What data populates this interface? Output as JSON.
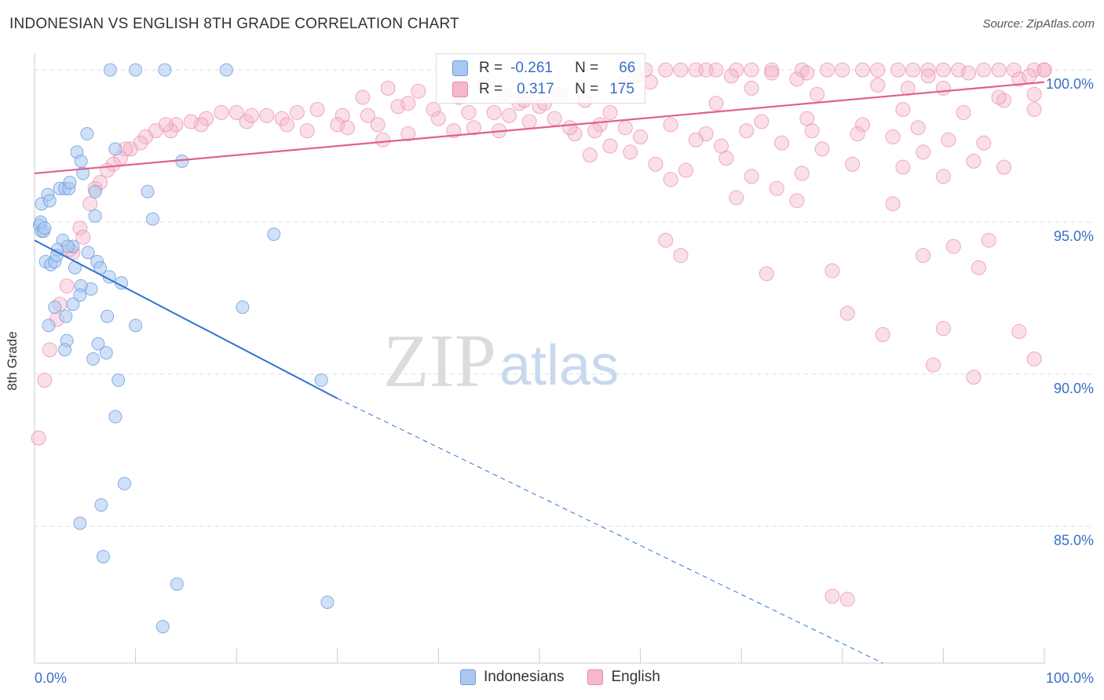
{
  "header": {
    "title": "INDONESIAN VS ENGLISH 8TH GRADE CORRELATION CHART",
    "source": "Source: ZipAtlas.com"
  },
  "watermark": {
    "zip": "ZIP",
    "atlas": "atlas"
  },
  "legend": {
    "rows": [
      {
        "r_label": "R =",
        "r_value": "-0.261",
        "n_label": "N =",
        "n_value": "66"
      },
      {
        "r_label": "R =",
        "r_value": "0.317",
        "n_label": "N =",
        "n_value": "175"
      }
    ]
  },
  "bottom_legend": {
    "items": [
      "Indonesians",
      "English"
    ]
  },
  "colors": {
    "indonesians_fill": "#a9c8f0",
    "indonesians_stroke": "#6b9be0",
    "indonesians_line": "#2f72d1",
    "english_fill": "#f5b8cb",
    "english_stroke": "#e98aa8",
    "english_line": "#e0608a",
    "tick_text": "#3a6fc4",
    "grid": "#dddddd"
  },
  "chart_data": {
    "type": "scatter",
    "title": "INDONESIAN VS ENGLISH 8TH GRADE CORRELATION CHART",
    "xlabel": "",
    "ylabel": "8th Grade",
    "xlim": [
      0,
      100
    ],
    "ylim": [
      80.5,
      100.7
    ],
    "x_tick_labels": [
      "0.0%",
      "100.0%"
    ],
    "y_ticks": [
      100,
      95,
      90,
      85
    ],
    "y_tick_labels": [
      "100.0%",
      "95.0%",
      "90.0%",
      "85.0%"
    ],
    "grid": true,
    "legend_position": "top-center",
    "series": [
      {
        "name": "Indonesians",
        "trend": {
          "x_start": 0,
          "y_start": 94.4,
          "x_solid_end": 30,
          "y_solid_end": 89.2,
          "x_dash_end": 84,
          "y_dash_end": 80.5
        },
        "points": [
          [
            7.5,
            100
          ],
          [
            10,
            100
          ],
          [
            12.9,
            100
          ],
          [
            19,
            100
          ],
          [
            5.2,
            97.9
          ],
          [
            4.2,
            97.3
          ],
          [
            8,
            97.4
          ],
          [
            14.6,
            97
          ],
          [
            4.6,
            97
          ],
          [
            4.8,
            96.6
          ],
          [
            2.5,
            96.1
          ],
          [
            3,
            96.1
          ],
          [
            3.4,
            96.1
          ],
          [
            6,
            96
          ],
          [
            11.2,
            96
          ],
          [
            1.3,
            95.9
          ],
          [
            0.7,
            95.6
          ],
          [
            1.5,
            95.7
          ],
          [
            3.5,
            96.3
          ],
          [
            6,
            95.2
          ],
          [
            11.7,
            95.1
          ],
          [
            0.5,
            94.9
          ],
          [
            0.7,
            94.7
          ],
          [
            0.9,
            94.7
          ],
          [
            23.7,
            94.6
          ],
          [
            2.8,
            94.4
          ],
          [
            2.3,
            94.1
          ],
          [
            3.8,
            94.2
          ],
          [
            5.3,
            94
          ],
          [
            1.1,
            93.7
          ],
          [
            1.6,
            93.6
          ],
          [
            2,
            93.7
          ],
          [
            6.2,
            93.7
          ],
          [
            6.5,
            93.5
          ],
          [
            7.4,
            93.2
          ],
          [
            5.6,
            92.8
          ],
          [
            4.6,
            92.9
          ],
          [
            4.5,
            92.6
          ],
          [
            3.8,
            92.3
          ],
          [
            2,
            92.2
          ],
          [
            7.2,
            91.9
          ],
          [
            3.1,
            91.9
          ],
          [
            1.4,
            91.6
          ],
          [
            10,
            91.6
          ],
          [
            20.6,
            92.2
          ],
          [
            3.2,
            91.1
          ],
          [
            6.3,
            91
          ],
          [
            3,
            90.8
          ],
          [
            7.1,
            90.7
          ],
          [
            5.8,
            90.5
          ],
          [
            8.3,
            89.8
          ],
          [
            28.4,
            89.8
          ],
          [
            8,
            88.6
          ],
          [
            8.9,
            86.4
          ],
          [
            6.6,
            85.7
          ],
          [
            4.5,
            85.1
          ],
          [
            6.8,
            84
          ],
          [
            14.1,
            83.1
          ],
          [
            29,
            82.5
          ],
          [
            12.7,
            81.7
          ],
          [
            0.6,
            95.0
          ],
          [
            1.0,
            94.8
          ],
          [
            2.2,
            93.9
          ],
          [
            4.0,
            93.5
          ],
          [
            3.3,
            94.2
          ],
          [
            8.6,
            93.0
          ]
        ]
      },
      {
        "name": "English",
        "trend": {
          "x_start": 0,
          "y_start": 96.6,
          "x_end": 100,
          "y_end": 99.6
        },
        "points": [
          [
            60.5,
            100
          ],
          [
            62.5,
            100
          ],
          [
            64,
            100
          ],
          [
            65.5,
            100
          ],
          [
            66.5,
            100
          ],
          [
            67.5,
            100
          ],
          [
            69.5,
            100
          ],
          [
            71,
            100
          ],
          [
            73,
            100
          ],
          [
            76,
            100
          ],
          [
            78.5,
            100
          ],
          [
            80,
            100
          ],
          [
            82,
            100
          ],
          [
            83.5,
            100
          ],
          [
            85.5,
            100
          ],
          [
            87,
            100
          ],
          [
            88.5,
            100
          ],
          [
            90,
            100
          ],
          [
            91.5,
            100
          ],
          [
            94,
            100
          ],
          [
            95.5,
            100
          ],
          [
            97,
            100
          ],
          [
            99,
            100
          ],
          [
            100,
            100
          ],
          [
            100,
            100
          ],
          [
            59.5,
            99.8
          ],
          [
            76.5,
            99.9
          ],
          [
            61,
            99.6
          ],
          [
            44.5,
            99.5
          ],
          [
            35,
            99.4
          ],
          [
            38,
            99.3
          ],
          [
            42,
            99.1
          ],
          [
            46.5,
            99.2
          ],
          [
            48,
            98.9
          ],
          [
            32.5,
            99.1
          ],
          [
            36,
            98.8
          ],
          [
            37,
            98.9
          ],
          [
            39.5,
            98.7
          ],
          [
            40,
            98.4
          ],
          [
            43,
            98.6
          ],
          [
            45.5,
            98.6
          ],
          [
            33,
            98.5
          ],
          [
            30.5,
            98.5
          ],
          [
            28,
            98.7
          ],
          [
            26,
            98.6
          ],
          [
            24.5,
            98.4
          ],
          [
            23,
            98.5
          ],
          [
            21,
            98.3
          ],
          [
            20,
            98.6
          ],
          [
            18.5,
            98.6
          ],
          [
            17,
            98.4
          ],
          [
            16.5,
            98.2
          ],
          [
            15.5,
            98.3
          ],
          [
            14,
            98.2
          ],
          [
            13.5,
            98.0
          ],
          [
            13,
            98.2
          ],
          [
            12,
            98
          ],
          [
            11,
            97.8
          ],
          [
            10.5,
            97.6
          ],
          [
            9.5,
            97.4
          ],
          [
            9,
            97.4
          ],
          [
            8.5,
            97.1
          ],
          [
            7.8,
            96.9
          ],
          [
            7.2,
            96.7
          ],
          [
            6.5,
            96.3
          ],
          [
            6,
            96.1
          ],
          [
            5.5,
            95.6
          ],
          [
            4.5,
            94.8
          ],
          [
            4.8,
            94.5
          ],
          [
            3.8,
            94.0
          ],
          [
            3.5,
            94.1
          ],
          [
            3.2,
            92.9
          ],
          [
            2.5,
            92.3
          ],
          [
            2.2,
            91.8
          ],
          [
            1.5,
            90.8
          ],
          [
            1,
            89.8
          ],
          [
            0.4,
            87.9
          ],
          [
            21.5,
            98.5
          ],
          [
            25,
            98.2
          ],
          [
            27,
            98.0
          ],
          [
            30,
            98.2
          ],
          [
            31,
            98.1
          ],
          [
            34,
            98.2
          ],
          [
            34.5,
            97.7
          ],
          [
            37,
            97.9
          ],
          [
            41.5,
            98.0
          ],
          [
            43.5,
            98.1
          ],
          [
            46,
            98.0
          ],
          [
            49,
            98.3
          ],
          [
            51.5,
            98.4
          ],
          [
            53.5,
            97.9
          ],
          [
            56,
            98.2
          ],
          [
            55,
            97.2
          ],
          [
            57,
            97.5
          ],
          [
            59,
            97.3
          ],
          [
            61.5,
            96.9
          ],
          [
            64.5,
            96.7
          ],
          [
            63,
            96.4
          ],
          [
            68.5,
            97.1
          ],
          [
            71,
            96.5
          ],
          [
            73.5,
            96.1
          ],
          [
            76,
            96.6
          ],
          [
            78,
            97.4
          ],
          [
            81,
            96.9
          ],
          [
            86,
            96.8
          ],
          [
            88,
            97.3
          ],
          [
            90,
            96.5
          ],
          [
            93,
            97.0
          ],
          [
            94,
            97.6
          ],
          [
            96,
            96.8
          ],
          [
            69.5,
            95.8
          ],
          [
            75.5,
            95.7
          ],
          [
            85,
            95.6
          ],
          [
            88,
            93.9
          ],
          [
            91,
            94.2
          ],
          [
            94.5,
            94.4
          ],
          [
            72.5,
            93.3
          ],
          [
            79,
            93.4
          ],
          [
            93.5,
            93.5
          ],
          [
            62.5,
            94.4
          ],
          [
            64,
            93.9
          ],
          [
            80.5,
            92.0
          ],
          [
            84,
            91.3
          ],
          [
            90,
            91.5
          ],
          [
            97.5,
            91.4
          ],
          [
            89,
            90.3
          ],
          [
            99,
            90.5
          ],
          [
            93,
            89.9
          ],
          [
            79,
            82.7
          ],
          [
            80.5,
            82.6
          ],
          [
            99,
            98.7
          ],
          [
            96,
            99.0
          ],
          [
            92,
            98.6
          ],
          [
            86,
            98.7
          ],
          [
            82,
            98.2
          ],
          [
            76.5,
            98.4
          ],
          [
            72,
            98.3
          ],
          [
            67.5,
            98.9
          ],
          [
            66.5,
            97.9
          ],
          [
            63,
            98.2
          ],
          [
            58.5,
            98.1
          ],
          [
            57,
            98.6
          ],
          [
            54.5,
            99.0
          ],
          [
            52,
            99.2
          ],
          [
            50,
            98.8
          ],
          [
            58,
            99.5
          ],
          [
            71,
            99.4
          ],
          [
            77.5,
            99.2
          ],
          [
            90,
            99.4
          ],
          [
            95.5,
            99.1
          ],
          [
            99,
            99.2
          ],
          [
            83.5,
            99.5
          ],
          [
            86.5,
            99.4
          ],
          [
            88.5,
            99.8
          ],
          [
            97.5,
            99.7
          ],
          [
            92.5,
            99.9
          ],
          [
            98.5,
            99.8
          ],
          [
            75.5,
            99.7
          ],
          [
            73,
            99.9
          ],
          [
            69,
            99.8
          ],
          [
            47,
            98.5
          ],
          [
            48.5,
            99.0
          ],
          [
            50.5,
            98.9
          ],
          [
            53,
            98.1
          ],
          [
            55.5,
            98.0
          ],
          [
            60,
            97.8
          ],
          [
            65.5,
            97.7
          ],
          [
            68,
            97.5
          ],
          [
            70.5,
            98.0
          ],
          [
            74,
            97.6
          ],
          [
            77,
            98.0
          ],
          [
            81.5,
            97.9
          ],
          [
            85,
            97.8
          ],
          [
            87.5,
            98.1
          ],
          [
            90.5,
            97.7
          ]
        ]
      }
    ]
  }
}
